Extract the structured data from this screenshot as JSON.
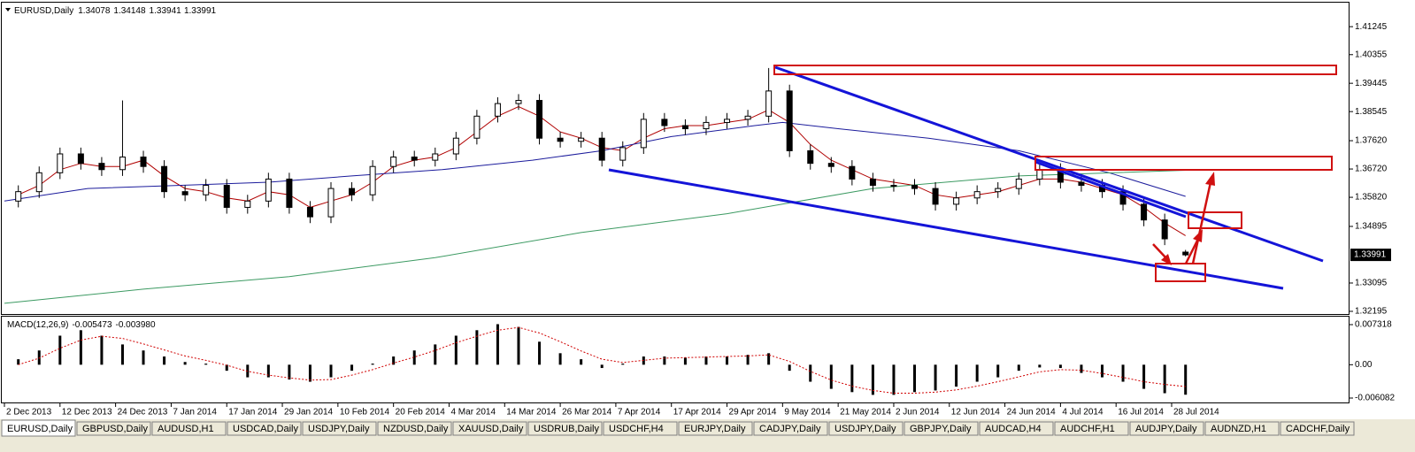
{
  "chart_data": {
    "type": "candlestick",
    "symbol": "EURUSD,Daily",
    "x": [
      2,
      5,
      8,
      11,
      14,
      17,
      20,
      23,
      26,
      29,
      32,
      35,
      38,
      41,
      44,
      47,
      50,
      53,
      56,
      59,
      62,
      65,
      68,
      71,
      74,
      77,
      80,
      83,
      86,
      89,
      92,
      95,
      98,
      101,
      104,
      107,
      110,
      113,
      116,
      119,
      122,
      125,
      128,
      131,
      134,
      137,
      140,
      143,
      146,
      149,
      152,
      155,
      158,
      161,
      164,
      167,
      170
    ],
    "open": [
      1.357,
      1.36,
      1.366,
      1.372,
      1.369,
      1.367,
      1.371,
      1.368,
      1.36,
      1.359,
      1.362,
      1.355,
      1.357,
      1.364,
      1.355,
      1.352,
      1.361,
      1.359,
      1.368,
      1.371,
      1.37,
      1.372,
      1.377,
      1.384,
      1.388,
      1.389,
      1.377,
      1.376,
      1.377,
      1.37,
      1.374,
      1.383,
      1.381,
      1.38,
      1.382,
      1.383,
      1.384,
      1.392,
      1.373,
      1.369,
      1.368,
      1.364,
      1.362,
      1.362,
      1.361,
      1.356,
      1.358,
      1.36,
      1.361,
      1.364,
      1.367,
      1.363,
      1.362,
      1.36,
      1.356,
      1.351,
      1.34078
    ],
    "high": [
      1.362,
      1.368,
      1.374,
      1.374,
      1.371,
      1.389,
      1.373,
      1.37,
      1.362,
      1.364,
      1.364,
      1.359,
      1.366,
      1.366,
      1.357,
      1.363,
      1.363,
      1.37,
      1.373,
      1.373,
      1.374,
      1.379,
      1.386,
      1.39,
      1.391,
      1.391,
      1.379,
      1.379,
      1.379,
      1.376,
      1.385,
      1.385,
      1.383,
      1.384,
      1.385,
      1.386,
      1.3993,
      1.394,
      1.375,
      1.371,
      1.37,
      1.366,
      1.364,
      1.364,
      1.363,
      1.36,
      1.362,
      1.363,
      1.366,
      1.369,
      1.369,
      1.365,
      1.364,
      1.362,
      1.358,
      1.353,
      1.34148
    ],
    "low": [
      1.355,
      1.358,
      1.364,
      1.367,
      1.365,
      1.365,
      1.366,
      1.358,
      1.357,
      1.357,
      1.353,
      1.353,
      1.355,
      1.353,
      1.35,
      1.35,
      1.357,
      1.357,
      1.366,
      1.368,
      1.368,
      1.37,
      1.375,
      1.382,
      1.386,
      1.375,
      1.374,
      1.374,
      1.368,
      1.368,
      1.372,
      1.379,
      1.378,
      1.378,
      1.38,
      1.381,
      1.382,
      1.371,
      1.367,
      1.366,
      1.362,
      1.36,
      1.36,
      1.359,
      1.354,
      1.354,
      1.356,
      1.358,
      1.359,
      1.362,
      1.361,
      1.36,
      1.358,
      1.354,
      1.349,
      1.343,
      1.33941
    ],
    "close": [
      1.36,
      1.366,
      1.372,
      1.369,
      1.367,
      1.371,
      1.368,
      1.36,
      1.359,
      1.362,
      1.355,
      1.357,
      1.364,
      1.355,
      1.352,
      1.361,
      1.359,
      1.368,
      1.371,
      1.37,
      1.372,
      1.377,
      1.384,
      1.388,
      1.389,
      1.377,
      1.376,
      1.377,
      1.37,
      1.374,
      1.383,
      1.381,
      1.38,
      1.382,
      1.383,
      1.384,
      1.392,
      1.373,
      1.369,
      1.368,
      1.364,
      1.362,
      1.362,
      1.361,
      1.356,
      1.358,
      1.36,
      1.361,
      1.364,
      1.367,
      1.363,
      1.362,
      1.36,
      1.356,
      1.351,
      1.345,
      1.33991
    ],
    "colors": {
      "bull": "#ffffff",
      "bear": "#000000",
      "outline": "#000000"
    },
    "xlim": [
      0,
      193.6
    ],
    "xticks": [
      {
        "value": 0,
        "label": "2 Dec 2013"
      },
      {
        "value": 8,
        "label": "12 Dec 2013"
      },
      {
        "value": 16,
        "label": "24 Dec 2013"
      },
      {
        "value": 24,
        "label": "7 Jan 2014"
      },
      {
        "value": 32,
        "label": "17 Jan 2014"
      },
      {
        "value": 40,
        "label": "29 Jan 2014"
      },
      {
        "value": 48,
        "label": "10 Feb 2014"
      },
      {
        "value": 56,
        "label": "20 Feb 2014"
      },
      {
        "value": 64,
        "label": "4 Mar 2014"
      },
      {
        "value": 72,
        "label": "14 Mar 2014"
      },
      {
        "value": 80,
        "label": "26 Mar 2014"
      },
      {
        "value": 88,
        "label": "7 Apr 2014"
      },
      {
        "value": 96,
        "label": "17 Apr 2014"
      },
      {
        "value": 104,
        "label": "29 Apr 2014"
      },
      {
        "value": 112,
        "label": "9 May 2014"
      },
      {
        "value": 120,
        "label": "21 May 2014"
      },
      {
        "value": 128,
        "label": "2 Jun 2014"
      },
      {
        "value": 136,
        "label": "12 Jun 2014"
      },
      {
        "value": 144,
        "label": "24 Jun 2014"
      },
      {
        "value": 152,
        "label": "4 Jul 2014"
      },
      {
        "value": 160,
        "label": "16 Jul 2014"
      },
      {
        "value": 168,
        "label": "28 Jul 2014"
      }
    ],
    "ylim": [
      1.3211,
      1.4198
    ],
    "yticks": [
      1.41245,
      1.40355,
      1.39445,
      1.38545,
      {
        "value": 1.3762,
        "label": "1.37620"
      },
      {
        "value": 1.3672,
        "label": "1.36720"
      },
      {
        "value": 1.3582,
        "label": "1.35820"
      },
      1.34895,
      1.33095,
      1.32195
    ],
    "grid": false,
    "moving_averages": [
      {
        "color": "#b00000",
        "x": [
          2,
          5,
          8,
          11,
          14,
          17,
          20,
          23,
          26,
          29,
          32,
          35,
          38,
          41,
          44,
          47,
          50,
          53,
          56,
          59,
          62,
          65,
          68,
          71,
          74,
          77,
          80,
          83,
          86,
          89,
          92,
          95,
          98,
          101,
          104,
          107,
          110,
          113,
          116,
          119,
          122,
          125,
          128,
          131,
          134,
          137,
          140,
          143,
          146,
          149,
          152,
          155,
          158,
          161,
          164,
          167,
          170
        ],
        "values": [
          1.359,
          1.362,
          1.367,
          1.369,
          1.368,
          1.368,
          1.37,
          1.365,
          1.361,
          1.36,
          1.358,
          1.357,
          1.36,
          1.359,
          1.355,
          1.357,
          1.359,
          1.363,
          1.368,
          1.37,
          1.371,
          1.374,
          1.379,
          1.384,
          1.387,
          1.384,
          1.379,
          1.377,
          1.374,
          1.373,
          1.377,
          1.38,
          1.381,
          1.381,
          1.382,
          1.383,
          1.386,
          1.382,
          1.375,
          1.37,
          1.367,
          1.364,
          1.363,
          1.362,
          1.359,
          1.358,
          1.359,
          1.36,
          1.362,
          1.364,
          1.364,
          1.363,
          1.361,
          1.359,
          1.355,
          1.35,
          1.346
        ]
      },
      {
        "color": "#1c1c9c",
        "x": [
          0,
          12,
          25,
          38,
          50,
          63,
          76,
          86,
          96,
          108,
          112,
          120,
          133,
          146,
          159,
          170
        ],
        "values": [
          1.357,
          1.361,
          1.362,
          1.363,
          1.365,
          1.367,
          1.37,
          1.373,
          1.3775,
          1.381,
          1.382,
          1.38,
          1.377,
          1.373,
          1.366,
          1.3585
        ]
      },
      {
        "color": "#3c9a62",
        "x": [
          0,
          20,
          41,
          62,
          83,
          104,
          125,
          146,
          170
        ],
        "values": [
          1.3245,
          1.329,
          1.333,
          1.339,
          1.347,
          1.353,
          1.361,
          1.365,
          1.3668
        ]
      }
    ],
    "macd": {
      "title": "MACD(12,26,9)",
      "header": {
        "macd": "-0.005473",
        "signal": "-0.003980"
      },
      "color": "#000000",
      "signal_color": "#d00000",
      "values": [
        0.001,
        0.0026,
        0.0053,
        0.0063,
        0.0053,
        0.0037,
        0.0026,
        0.0015,
        0.0005,
        0.0002,
        -0.0011,
        -0.0023,
        -0.0023,
        -0.0027,
        -0.0031,
        -0.0023,
        -0.0011,
        0.0002,
        0.0015,
        0.0026,
        0.0037,
        0.0053,
        0.0063,
        0.0074,
        0.0069,
        0.0042,
        0.0021,
        0.001,
        -0.0006,
        0.0002,
        0.0015,
        0.0015,
        0.0013,
        0.0015,
        0.0015,
        0.0018,
        0.0021,
        -0.0011,
        -0.0031,
        -0.0044,
        -0.005,
        -0.0055,
        -0.0055,
        -0.005,
        -0.0047,
        -0.004,
        -0.0031,
        -0.0023,
        -0.0011,
        -0.0005,
        -0.0006,
        -0.0015,
        -0.0023,
        -0.0031,
        -0.0044,
        -0.0052,
        -0.005473
      ],
      "signal": [
        0,
        0.0012,
        0.003,
        0.0045,
        0.0052,
        0.0048,
        0.0038,
        0.0027,
        0.0016,
        0.0008,
        -0.0001,
        -0.0012,
        -0.0019,
        -0.0024,
        -0.0028,
        -0.0027,
        -0.0019,
        -0.0009,
        0.0003,
        0.0014,
        0.0026,
        0.004,
        0.0052,
        0.0063,
        0.0068,
        0.0058,
        0.0042,
        0.0025,
        0.001,
        0.0004,
        0.0008,
        0.0012,
        0.0013,
        0.0014,
        0.0015,
        0.0016,
        0.0018,
        0.0006,
        -0.0012,
        -0.0028,
        -0.0039,
        -0.0047,
        -0.0052,
        -0.0052,
        -0.005,
        -0.0046,
        -0.0039,
        -0.0031,
        -0.0022,
        -0.0013,
        -0.0009,
        -0.001,
        -0.0016,
        -0.0023,
        -0.0031,
        -0.0036,
        -0.00398
      ],
      "ylim": [
        -0.006889,
        0.00877
      ],
      "yticks": [
        0.007318,
        {
          "value": 0,
          "label": "0.00"
        },
        -0.006082
      ]
    },
    "tabs": [
      "EURUSD,Daily",
      "GBPUSD,Daily",
      "AUDUSD,H1",
      "USDCAD,Daily",
      "USDJPY,Daily",
      "NZDUSD,Daily",
      "XAUUSD,Daily",
      "USDRUB,Daily",
      "USDCHF,H4",
      "EURJPY,Daily",
      "CADJPY,Daily",
      "USDJPY,Daily",
      "GBPJPY,Daily",
      "AUDCAD,H4",
      "AUDCHF,H1",
      "AUDJPY,Daily",
      "AUDNZD,H1",
      "CADCHF,Daily"
    ],
    "active_tab": 0
  }
}
